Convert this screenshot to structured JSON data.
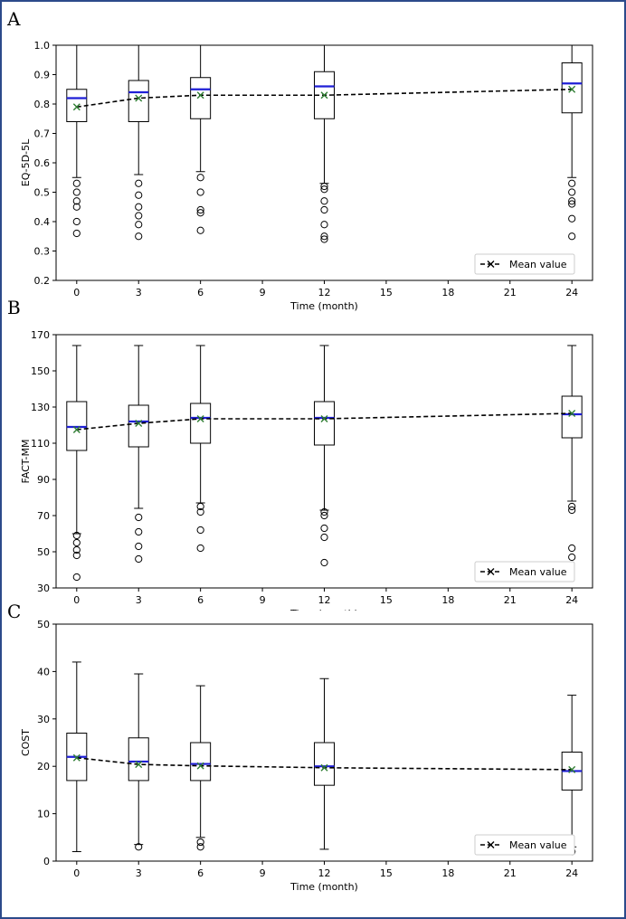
{
  "chart_data": [
    {
      "panel": "A",
      "type": "box",
      "ylabel": "EQ-5D-5L",
      "xlabel": "Time (month)",
      "ylim": [
        0.2,
        1.0
      ],
      "yticks": [
        0.2,
        0.3,
        0.4,
        0.5,
        0.6,
        0.7,
        0.8,
        0.9,
        1.0
      ],
      "ytick_labels": [
        "0.2",
        "0.3",
        "0.4",
        "0.5",
        "0.6",
        "0.7",
        "0.8",
        "0.9",
        "1.0"
      ],
      "xlim": [
        -1,
        25
      ],
      "xticks": [
        0,
        3,
        6,
        9,
        12,
        15,
        18,
        21,
        24
      ],
      "xtick_labels": [
        "0",
        "3",
        "6",
        "9",
        "12",
        "15",
        "18",
        "21",
        "24"
      ],
      "legend": "Mean value",
      "legend_position": "lower-right",
      "boxes": [
        {
          "x": 0,
          "q1": 0.74,
          "median": 0.82,
          "q3": 0.85,
          "lo": 0.55,
          "hi": 1.0,
          "mean": 0.79,
          "outliers": [
            0.53,
            0.5,
            0.47,
            0.45,
            0.4,
            0.36
          ]
        },
        {
          "x": 3,
          "q1": 0.74,
          "median": 0.84,
          "q3": 0.88,
          "lo": 0.56,
          "hi": 1.0,
          "mean": 0.82,
          "outliers": [
            0.53,
            0.49,
            0.45,
            0.42,
            0.39,
            0.35
          ]
        },
        {
          "x": 6,
          "q1": 0.75,
          "median": 0.85,
          "q3": 0.89,
          "lo": 0.57,
          "hi": 1.0,
          "mean": 0.83,
          "outliers": [
            0.55,
            0.5,
            0.44,
            0.43,
            0.37
          ]
        },
        {
          "x": 12,
          "q1": 0.75,
          "median": 0.86,
          "q3": 0.91,
          "lo": 0.53,
          "hi": 1.0,
          "mean": 0.83,
          "outliers": [
            0.52,
            0.51,
            0.47,
            0.44,
            0.39,
            0.35,
            0.34
          ]
        },
        {
          "x": 24,
          "q1": 0.77,
          "median": 0.87,
          "q3": 0.94,
          "lo": 0.55,
          "hi": 1.0,
          "mean": 0.85,
          "outliers": [
            0.53,
            0.5,
            0.47,
            0.46,
            0.41,
            0.35
          ]
        }
      ]
    },
    {
      "panel": "B",
      "type": "box",
      "ylabel": "FACT-MM",
      "xlabel": "Time (month)",
      "ylim": [
        30,
        170
      ],
      "yticks": [
        30,
        50,
        70,
        90,
        110,
        130,
        150,
        170
      ],
      "ytick_labels": [
        "30",
        "50",
        "70",
        "90",
        "110",
        "130",
        "150",
        "170"
      ],
      "xlim": [
        -1,
        25
      ],
      "xticks": [
        0,
        3,
        6,
        9,
        12,
        15,
        18,
        21,
        24
      ],
      "xtick_labels": [
        "0",
        "3",
        "6",
        "9",
        "12",
        "15",
        "18",
        "21",
        "24"
      ],
      "legend": "Mean value",
      "legend_position": "lower-right",
      "boxes": [
        {
          "x": 0,
          "q1": 106,
          "median": 119,
          "q3": 133,
          "lo": 60,
          "hi": 164,
          "mean": 117.5,
          "outliers": [
            59,
            55,
            51,
            48,
            36
          ]
        },
        {
          "x": 3,
          "q1": 108,
          "median": 122,
          "q3": 131,
          "lo": 74,
          "hi": 164,
          "mean": 121,
          "outliers": [
            69,
            61,
            53,
            46
          ]
        },
        {
          "x": 6,
          "q1": 110,
          "median": 124,
          "q3": 132,
          "lo": 77,
          "hi": 164,
          "mean": 123.5,
          "outliers": [
            75,
            72,
            62,
            52
          ]
        },
        {
          "x": 12,
          "q1": 109,
          "median": 124,
          "q3": 133,
          "lo": 73,
          "hi": 164,
          "mean": 123.5,
          "outliers": [
            72,
            70,
            63,
            58,
            44
          ]
        },
        {
          "x": 24,
          "q1": 113,
          "median": 126,
          "q3": 136,
          "lo": 78,
          "hi": 164,
          "mean": 126.5,
          "outliers": [
            75,
            73,
            52,
            47
          ]
        }
      ]
    },
    {
      "panel": "C",
      "type": "box",
      "ylabel": "COST",
      "xlabel": "Time (month)",
      "ylim": [
        0,
        50
      ],
      "yticks": [
        0,
        10,
        20,
        30,
        40,
        50
      ],
      "ytick_labels": [
        "0",
        "10",
        "20",
        "30",
        "40",
        "50"
      ],
      "xlim": [
        -1,
        25
      ],
      "xticks": [
        0,
        3,
        6,
        9,
        12,
        15,
        18,
        21,
        24
      ],
      "xtick_labels": [
        "0",
        "3",
        "6",
        "9",
        "12",
        "15",
        "18",
        "21",
        "24"
      ],
      "legend": "Mean value",
      "legend_position": "lower-right",
      "boxes": [
        {
          "x": 0,
          "q1": 17,
          "median": 22,
          "q3": 27,
          "lo": 2,
          "hi": 42,
          "mean": 21.8,
          "outliers": []
        },
        {
          "x": 3,
          "q1": 17,
          "median": 21,
          "q3": 26,
          "lo": 3.5,
          "hi": 39.5,
          "mean": 20.4,
          "outliers": [
            3.0
          ]
        },
        {
          "x": 6,
          "q1": 17,
          "median": 20.5,
          "q3": 25,
          "lo": 5,
          "hi": 37,
          "mean": 20.1,
          "outliers": [
            4.0,
            3.0
          ]
        },
        {
          "x": 12,
          "q1": 16,
          "median": 20,
          "q3": 25,
          "lo": 2.5,
          "hi": 38.5,
          "mean": 19.7,
          "outliers": []
        },
        {
          "x": 24,
          "q1": 15,
          "median": 19,
          "q3": 23,
          "lo": 3,
          "hi": 35,
          "mean": 19.3,
          "outliers": [
            2.0
          ]
        }
      ]
    }
  ],
  "colors": {
    "median": "#1f1fd6",
    "mean_marker": "#2e7d32",
    "mean_line": "#000000",
    "frame": "#2c4a8a"
  }
}
